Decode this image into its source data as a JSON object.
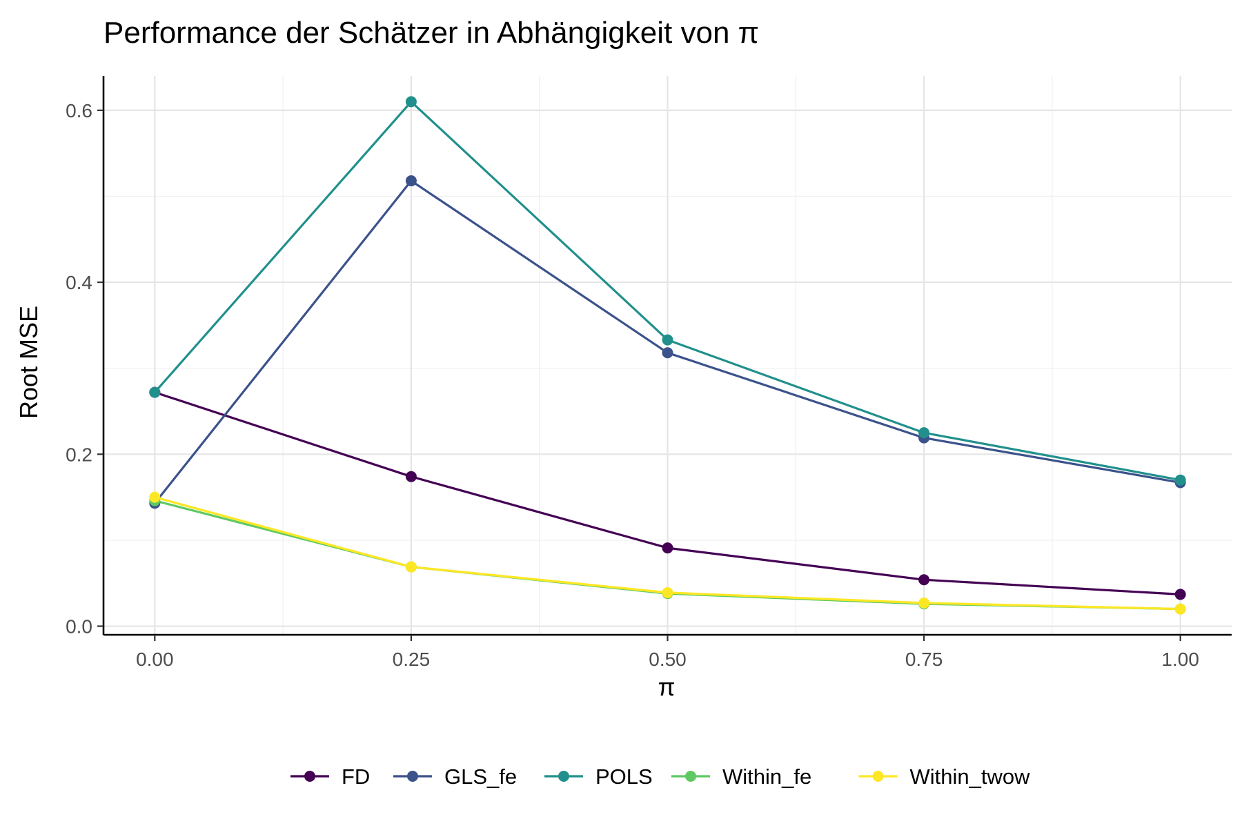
{
  "chart_data": {
    "type": "line",
    "title": "Performance der Schätzer in Abhängigkeit von π",
    "xlabel": "π",
    "ylabel": "Root MSE",
    "x": [
      0.0,
      0.25,
      0.5,
      0.75,
      1.0
    ],
    "xlim": [
      -0.05,
      1.05
    ],
    "ylim": [
      -0.01,
      0.64
    ],
    "x_ticks": [
      "0.00",
      "0.25",
      "0.50",
      "0.75",
      "1.00"
    ],
    "y_ticks": [
      "0.0",
      "0.2",
      "0.4",
      "0.6"
    ],
    "grid": true,
    "legend_position": "bottom",
    "series": [
      {
        "name": "FD",
        "color": "#440154",
        "values": [
          0.272,
          0.174,
          0.091,
          0.054,
          0.037
        ]
      },
      {
        "name": "GLS_fe",
        "color": "#3b528b",
        "values": [
          0.143,
          0.518,
          0.318,
          0.219,
          0.167
        ]
      },
      {
        "name": "POLS",
        "color": "#21908c",
        "values": [
          0.272,
          0.61,
          0.333,
          0.225,
          0.17
        ]
      },
      {
        "name": "Within_fe",
        "color": "#5ec962",
        "values": [
          0.146,
          0.069,
          0.038,
          0.026,
          0.02
        ]
      },
      {
        "name": "Within_twow",
        "color": "#fde725",
        "values": [
          0.15,
          0.069,
          0.039,
          0.027,
          0.02
        ]
      }
    ]
  }
}
